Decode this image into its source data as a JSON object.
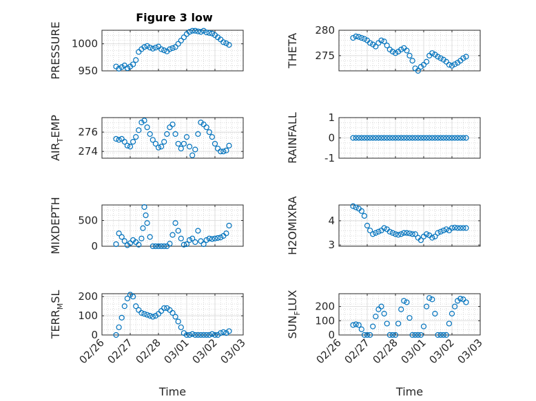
{
  "chart_data": {
    "title": "Figure 3 low",
    "marker_color": "#0072bd",
    "x_ticks": [
      "02/26",
      "02/27",
      "02/28",
      "03/01",
      "03/02",
      "03/03"
    ],
    "xlabel": "Time",
    "grid": true,
    "subplots": [
      {
        "type": "scatter",
        "ylabel": {
          "main": "PRESSURE",
          "sub": "",
          "rest": ""
        },
        "ylim": [
          950,
          1025
        ],
        "yticks": [
          "950",
          "1000"
        ],
        "ytick_values": [
          950,
          1000
        ],
        "x": [
          0.5,
          0.6,
          0.7,
          0.8,
          0.9,
          1.0,
          1.1,
          1.2,
          1.3,
          1.4,
          1.5,
          1.6,
          1.7,
          1.8,
          1.9,
          2.0,
          2.1,
          2.2,
          2.3,
          2.4,
          2.5,
          2.6,
          2.7,
          2.8,
          2.9,
          3.0,
          3.1,
          3.2,
          3.3,
          3.4,
          3.5,
          3.6,
          3.7,
          3.8,
          3.9,
          4.0,
          4.1,
          4.2,
          4.3,
          4.4,
          4.5
        ],
        "y": [
          958,
          954,
          957,
          960,
          955,
          958,
          962,
          970,
          985,
          990,
          994,
          996,
          993,
          991,
          993,
          995,
          990,
          988,
          986,
          990,
          992,
          994,
          1000,
          1006,
          1012,
          1018,
          1022,
          1024,
          1024,
          1023,
          1022,
          1024,
          1021,
          1020,
          1019,
          1016,
          1012,
          1008,
          1003,
          1001,
          998
        ]
      },
      {
        "type": "scatter",
        "ylabel": {
          "main": "THETA",
          "sub": "",
          "rest": ""
        },
        "ylim": [
          272,
          280
        ],
        "yticks": [
          "275",
          "280"
        ],
        "ytick_values": [
          275,
          280
        ],
        "x": [
          0.5,
          0.6,
          0.7,
          0.8,
          0.9,
          1.0,
          1.1,
          1.2,
          1.3,
          1.4,
          1.5,
          1.6,
          1.7,
          1.8,
          1.9,
          2.0,
          2.1,
          2.2,
          2.3,
          2.4,
          2.5,
          2.6,
          2.7,
          2.8,
          2.9,
          3.0,
          3.1,
          3.2,
          3.3,
          3.4,
          3.5,
          3.6,
          3.7,
          3.8,
          3.9,
          4.0,
          4.1,
          4.2,
          4.3,
          4.4,
          4.5
        ],
        "y": [
          278.5,
          278.8,
          278.7,
          278.5,
          278.3,
          278.0,
          277.5,
          277.2,
          276.8,
          277.5,
          278.0,
          277.8,
          277.0,
          276.2,
          275.8,
          275.5,
          275.8,
          276.2,
          276.5,
          276.0,
          275.0,
          274.0,
          272.5,
          272.0,
          272.8,
          273.2,
          273.8,
          275.0,
          275.5,
          275.2,
          274.8,
          274.5,
          274.2,
          273.8,
          273.2,
          273.0,
          273.3,
          273.6,
          274.0,
          274.5,
          274.8
        ]
      },
      {
        "type": "scatter",
        "ylabel": {
          "main": "AIR",
          "sub": "T",
          "rest": "EMP"
        },
        "ylim": [
          273.3,
          277.5
        ],
        "yticks": [
          "274",
          "276"
        ],
        "ytick_values": [
          274,
          276
        ],
        "x": [
          0.5,
          0.6,
          0.7,
          0.8,
          0.9,
          1.0,
          1.1,
          1.2,
          1.3,
          1.4,
          1.5,
          1.6,
          1.7,
          1.8,
          1.9,
          2.0,
          2.1,
          2.2,
          2.3,
          2.4,
          2.5,
          2.6,
          2.7,
          2.8,
          2.9,
          3.0,
          3.1,
          3.2,
          3.3,
          3.4,
          3.5,
          3.6,
          3.7,
          3.8,
          3.9,
          4.0,
          4.1,
          4.2,
          4.3,
          4.4,
          4.5
        ],
        "y": [
          275.3,
          275.2,
          275.3,
          275.0,
          274.6,
          274.5,
          275.0,
          275.5,
          276.2,
          277.0,
          277.2,
          276.5,
          275.8,
          275.2,
          274.8,
          274.4,
          274.5,
          275.0,
          275.8,
          276.5,
          276.8,
          275.8,
          274.8,
          274.3,
          274.8,
          275.5,
          274.5,
          273.6,
          274.2,
          275.8,
          277.0,
          276.8,
          276.5,
          276.0,
          275.5,
          274.8,
          274.3,
          274.0,
          274.0,
          274.1,
          274.6
        ]
      },
      {
        "type": "scatter",
        "ylabel": {
          "main": "RAINFALL",
          "sub": "",
          "rest": ""
        },
        "ylim": [
          -1,
          1
        ],
        "yticks": [
          "-1",
          "0",
          "1"
        ],
        "ytick_values": [
          -1,
          0,
          1
        ],
        "x": [
          0.5,
          0.6,
          0.7,
          0.8,
          0.9,
          1.0,
          1.1,
          1.2,
          1.3,
          1.4,
          1.5,
          1.6,
          1.7,
          1.8,
          1.9,
          2.0,
          2.1,
          2.2,
          2.3,
          2.4,
          2.5,
          2.6,
          2.7,
          2.8,
          2.9,
          3.0,
          3.1,
          3.2,
          3.3,
          3.4,
          3.5,
          3.6,
          3.7,
          3.8,
          3.9,
          4.0,
          4.1,
          4.2,
          4.3,
          4.4,
          4.5
        ],
        "y": [
          0,
          0,
          0,
          0,
          0,
          0,
          0,
          0,
          0,
          0,
          0,
          0,
          0,
          0,
          0,
          0,
          0,
          0,
          0,
          0,
          0,
          0,
          0,
          0,
          0,
          0,
          0,
          0,
          0,
          0,
          0,
          0,
          0,
          0,
          0,
          0,
          0,
          0,
          0,
          0,
          0
        ]
      },
      {
        "type": "scatter",
        "ylabel": {
          "main": "MIXDEPTH",
          "sub": "",
          "rest": ""
        },
        "ylim": [
          0,
          800
        ],
        "yticks": [
          "0",
          "500"
        ],
        "ytick_values": [
          0,
          500
        ],
        "x": [
          0.5,
          0.6,
          0.7,
          0.8,
          0.9,
          1.0,
          1.1,
          1.2,
          1.3,
          1.4,
          1.45,
          1.5,
          1.55,
          1.6,
          1.7,
          1.8,
          1.9,
          2.0,
          2.1,
          2.2,
          2.3,
          2.4,
          2.5,
          2.6,
          2.7,
          2.8,
          2.9,
          3.0,
          3.1,
          3.2,
          3.3,
          3.4,
          3.5,
          3.6,
          3.7,
          3.8,
          3.9,
          4.0,
          4.1,
          4.2,
          4.3,
          4.4,
          4.5
        ],
        "y": [
          40,
          250,
          180,
          100,
          20,
          60,
          120,
          80,
          30,
          150,
          350,
          760,
          600,
          450,
          180,
          0,
          0,
          0,
          0,
          0,
          0,
          50,
          220,
          450,
          300,
          150,
          30,
          40,
          120,
          150,
          80,
          300,
          100,
          40,
          120,
          150,
          140,
          150,
          160,
          170,
          200,
          250,
          400
        ]
      },
      {
        "type": "scatter",
        "ylabel": {
          "main": "H2OMIXRA",
          "sub": "",
          "rest": ""
        },
        "ylim": [
          2.95,
          4.65
        ],
        "yticks": [
          "3",
          "4"
        ],
        "ytick_values": [
          3,
          4
        ],
        "x": [
          0.5,
          0.6,
          0.7,
          0.8,
          0.9,
          1.0,
          1.1,
          1.2,
          1.3,
          1.4,
          1.5,
          1.6,
          1.7,
          1.8,
          1.9,
          2.0,
          2.1,
          2.2,
          2.3,
          2.4,
          2.5,
          2.6,
          2.7,
          2.8,
          2.9,
          3.0,
          3.1,
          3.2,
          3.3,
          3.4,
          3.5,
          3.6,
          3.7,
          3.8,
          3.9,
          4.0,
          4.1,
          4.2,
          4.3,
          4.4,
          4.5
        ],
        "y": [
          4.6,
          4.55,
          4.5,
          4.4,
          4.2,
          3.8,
          3.6,
          3.45,
          3.5,
          3.55,
          3.6,
          3.7,
          3.65,
          3.55,
          3.5,
          3.45,
          3.42,
          3.45,
          3.5,
          3.5,
          3.48,
          3.45,
          3.45,
          3.3,
          3.2,
          3.35,
          3.45,
          3.4,
          3.3,
          3.35,
          3.5,
          3.55,
          3.6,
          3.65,
          3.6,
          3.7,
          3.72,
          3.7,
          3.7,
          3.7,
          3.7
        ]
      },
      {
        "type": "scatter",
        "ylabel": {
          "main": "TERR",
          "sub": "M",
          "rest": "SL"
        },
        "ylim": [
          0,
          215
        ],
        "yticks": [
          "0",
          "100",
          "200"
        ],
        "ytick_values": [
          0,
          100,
          200
        ],
        "x": [
          0.5,
          0.6,
          0.7,
          0.8,
          0.9,
          1.0,
          1.1,
          1.2,
          1.3,
          1.4,
          1.5,
          1.6,
          1.7,
          1.8,
          1.9,
          2.0,
          2.1,
          2.2,
          2.3,
          2.4,
          2.5,
          2.6,
          2.7,
          2.8,
          2.9,
          3.0,
          3.1,
          3.2,
          3.3,
          3.4,
          3.5,
          3.6,
          3.7,
          3.8,
          3.9,
          4.0,
          4.1,
          4.2,
          4.3,
          4.4,
          4.5
        ],
        "y": [
          0,
          40,
          90,
          150,
          190,
          210,
          200,
          150,
          130,
          115,
          110,
          105,
          100,
          95,
          100,
          110,
          125,
          140,
          140,
          130,
          115,
          95,
          70,
          40,
          10,
          0,
          0,
          5,
          0,
          0,
          0,
          0,
          0,
          0,
          5,
          0,
          0,
          10,
          15,
          10,
          20
        ]
      },
      {
        "type": "scatter",
        "ylabel": {
          "main": "SUN",
          "sub": "F",
          "rest": "LUX"
        },
        "ylim": [
          0,
          290
        ],
        "yticks": [
          "0",
          "100",
          "200"
        ],
        "ytick_values": [
          0,
          100,
          200
        ],
        "x": [
          0.5,
          0.6,
          0.7,
          0.8,
          0.9,
          1.0,
          1.1,
          1.2,
          1.3,
          1.4,
          1.5,
          1.6,
          1.7,
          1.8,
          1.9,
          2.0,
          2.1,
          2.2,
          2.3,
          2.4,
          2.5,
          2.6,
          2.7,
          2.8,
          2.9,
          3.0,
          3.1,
          3.2,
          3.3,
          3.4,
          3.5,
          3.6,
          3.7,
          3.8,
          3.9,
          4.0,
          4.1,
          4.2,
          4.3,
          4.4,
          4.5
        ],
        "y": [
          70,
          75,
          70,
          40,
          0,
          0,
          0,
          60,
          130,
          180,
          200,
          150,
          80,
          0,
          0,
          0,
          80,
          180,
          240,
          230,
          120,
          0,
          0,
          0,
          0,
          60,
          200,
          260,
          250,
          150,
          0,
          0,
          0,
          0,
          80,
          150,
          200,
          240,
          255,
          250,
          230
        ]
      }
    ]
  }
}
